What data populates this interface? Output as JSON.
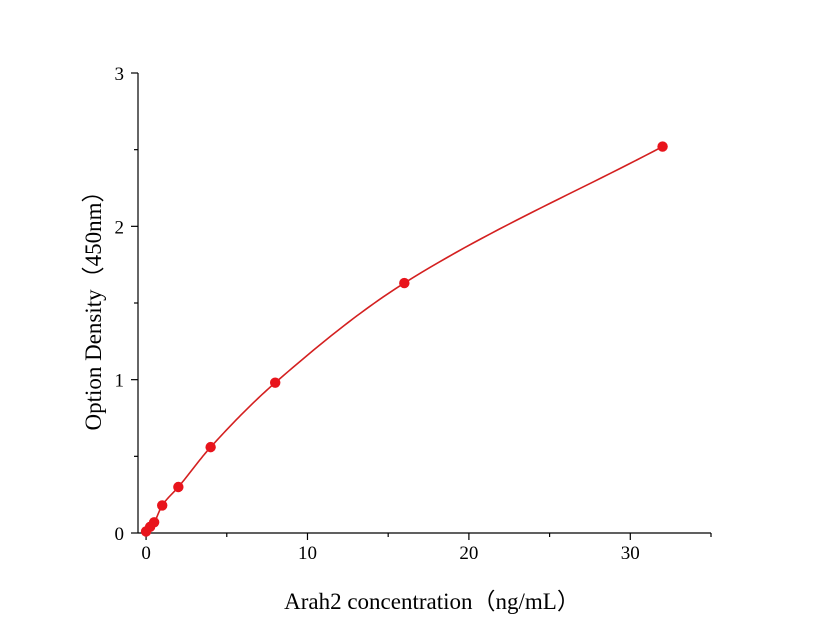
{
  "chart_data": {
    "type": "scatter",
    "xlabel": "Arah2 concentration（ng/mL）",
    "ylabel": "Option Density（450nm）",
    "xlim": [
      -0.5,
      35
    ],
    "ylim": [
      0,
      3
    ],
    "x_ticks": [
      0,
      10,
      20,
      30
    ],
    "y_ticks": [
      0,
      1,
      2,
      3
    ],
    "grid": false,
    "legend": "none",
    "series": [
      {
        "marker_color": "#e8141c",
        "line_color": "#d42020",
        "x": [
          0,
          0.25,
          0.5,
          1,
          2,
          4,
          8,
          16,
          32
        ],
        "y": [
          0.01,
          0.04,
          0.07,
          0.18,
          0.3,
          0.56,
          0.98,
          1.63,
          2.52
        ],
        "fit_curve": true
      }
    ]
  }
}
